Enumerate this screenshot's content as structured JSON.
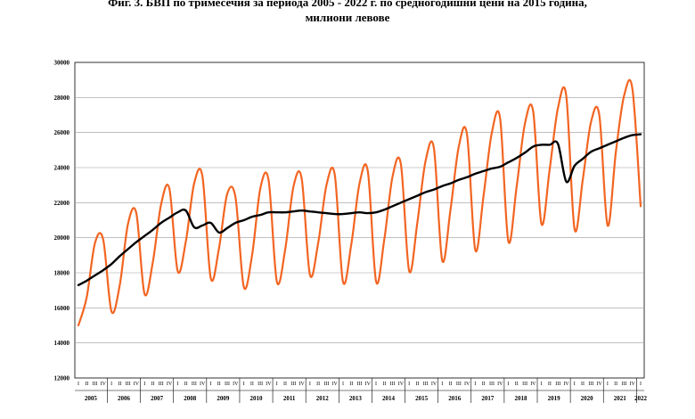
{
  "chart_data": {
    "type": "line",
    "title_lines": [
      "Фиг. 3. БВП по тримесечия за периода 2005 - 2022 г. по средногодишни цени на 2015 година,",
      "милиони левове"
    ],
    "xlabel": "",
    "ylabel": "",
    "ylim": [
      12000,
      30000
    ],
    "yticks": [
      12000,
      14000,
      16000,
      18000,
      20000,
      22000,
      24000,
      26000,
      28000,
      30000
    ],
    "years": [
      "2005",
      "2006",
      "2007",
      "2008",
      "2009",
      "2010",
      "2011",
      "2012",
      "2013",
      "2014",
      "2015",
      "2016",
      "2017",
      "2018",
      "2019",
      "2020",
      "2021",
      "2022"
    ],
    "quarter_labels": [
      "I",
      "II",
      "III",
      "IV"
    ],
    "grid": true,
    "series": [
      {
        "color": "#f26522",
        "values": [
          15000,
          16600,
          19700,
          19900,
          15800,
          17300,
          20800,
          21400,
          16800,
          18600,
          21900,
          22800,
          18100,
          19800,
          23100,
          23500,
          17700,
          19400,
          22500,
          22300,
          17200,
          19000,
          22800,
          23300,
          17500,
          19300,
          22900,
          23400,
          17900,
          19700,
          23000,
          23600,
          17500,
          19600,
          23100,
          23800,
          17500,
          19900,
          23500,
          24200,
          18100,
          20900,
          24400,
          25100,
          18700,
          21600,
          25200,
          25900,
          19300,
          22400,
          26000,
          26800,
          19800,
          22900,
          26500,
          27200,
          20800,
          23900,
          27400,
          28100,
          20500,
          23300,
          26600,
          27000,
          20700,
          24900,
          28100,
          28500,
          21800
        ]
      },
      {
        "color": "#000000",
        "values": [
          17300,
          17550,
          17850,
          18150,
          18500,
          18950,
          19350,
          19750,
          20100,
          20450,
          20850,
          21150,
          21450,
          21550,
          20600,
          20700,
          20850,
          20300,
          20550,
          20850,
          21000,
          21200,
          21300,
          21450,
          21450,
          21450,
          21500,
          21550,
          21500,
          21450,
          21400,
          21350,
          21350,
          21400,
          21450,
          21400,
          21450,
          21600,
          21800,
          22000,
          22200,
          22400,
          22600,
          22750,
          22950,
          23100,
          23300,
          23450,
          23650,
          23800,
          23950,
          24050,
          24300,
          24550,
          24850,
          25200,
          25300,
          25300,
          25350,
          23200,
          24100,
          24500,
          24900,
          25100,
          25300,
          25500,
          25700,
          25850,
          25900
        ]
      }
    ]
  }
}
